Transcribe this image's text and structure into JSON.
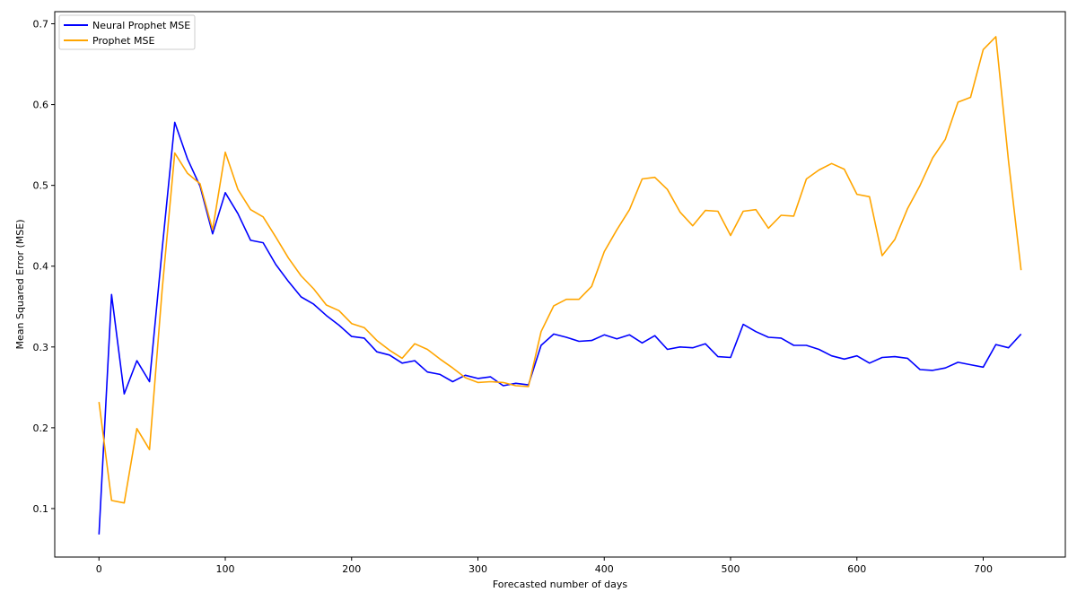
{
  "chart_data": {
    "type": "line",
    "title": "",
    "xlabel": "Forecasted number of days",
    "ylabel": "Mean Squared Error (MSE)",
    "xlim": [
      -35,
      765
    ],
    "ylim": [
      0.04,
      0.715
    ],
    "xticks": [
      0,
      100,
      200,
      300,
      400,
      500,
      600,
      700
    ],
    "yticks": [
      0.1,
      0.2,
      0.3,
      0.4,
      0.5,
      0.6,
      0.7
    ],
    "grid": false,
    "legend_position": "top-left",
    "x": [
      0,
      10,
      20,
      30,
      40,
      50,
      60,
      70,
      80,
      90,
      100,
      110,
      120,
      130,
      140,
      150,
      160,
      170,
      180,
      190,
      200,
      210,
      220,
      230,
      240,
      250,
      260,
      270,
      280,
      290,
      300,
      310,
      320,
      330,
      340,
      350,
      360,
      370,
      380,
      390,
      400,
      410,
      420,
      430,
      440,
      450,
      460,
      470,
      480,
      490,
      500,
      510,
      520,
      530,
      540,
      550,
      560,
      570,
      580,
      590,
      600,
      610,
      620,
      630,
      640,
      650,
      660,
      670,
      680,
      690,
      700,
      710,
      720,
      730
    ],
    "series": [
      {
        "name": "Neural Prophet MSE",
        "color": "#0000ff",
        "values": [
          0.068,
          0.365,
          0.242,
          0.283,
          0.257,
          0.42,
          0.578,
          0.533,
          0.499,
          0.44,
          0.491,
          0.465,
          0.432,
          0.429,
          0.402,
          0.381,
          0.362,
          0.353,
          0.339,
          0.327,
          0.313,
          0.311,
          0.294,
          0.29,
          0.28,
          0.283,
          0.269,
          0.266,
          0.257,
          0.265,
          0.261,
          0.263,
          0.252,
          0.255,
          0.253,
          0.302,
          0.316,
          0.312,
          0.307,
          0.308,
          0.315,
          0.31,
          0.315,
          0.305,
          0.314,
          0.297,
          0.3,
          0.299,
          0.304,
          0.288,
          0.287,
          0.328,
          0.319,
          0.312,
          0.311,
          0.302,
          0.302,
          0.297,
          0.289,
          0.285,
          0.289,
          0.28,
          0.287,
          0.288,
          0.286,
          0.272,
          0.271,
          0.274,
          0.281,
          0.278,
          0.275,
          0.303,
          0.299,
          0.316
        ]
      },
      {
        "name": "Prophet MSE",
        "color": "#ffa500",
        "values": [
          0.232,
          0.11,
          0.107,
          0.199,
          0.173,
          0.37,
          0.54,
          0.515,
          0.502,
          0.445,
          0.541,
          0.495,
          0.47,
          0.461,
          0.436,
          0.41,
          0.388,
          0.372,
          0.352,
          0.345,
          0.329,
          0.324,
          0.308,
          0.296,
          0.286,
          0.304,
          0.297,
          0.285,
          0.274,
          0.262,
          0.256,
          0.257,
          0.256,
          0.252,
          0.251,
          0.319,
          0.351,
          0.359,
          0.359,
          0.375,
          0.418,
          0.445,
          0.47,
          0.508,
          0.51,
          0.495,
          0.467,
          0.45,
          0.469,
          0.468,
          0.438,
          0.468,
          0.47,
          0.447,
          0.463,
          0.462,
          0.508,
          0.519,
          0.527,
          0.52,
          0.489,
          0.486,
          0.413,
          0.433,
          0.471,
          0.5,
          0.534,
          0.557,
          0.603,
          0.609,
          0.668,
          0.684,
          0.53,
          0.395
        ]
      }
    ]
  }
}
